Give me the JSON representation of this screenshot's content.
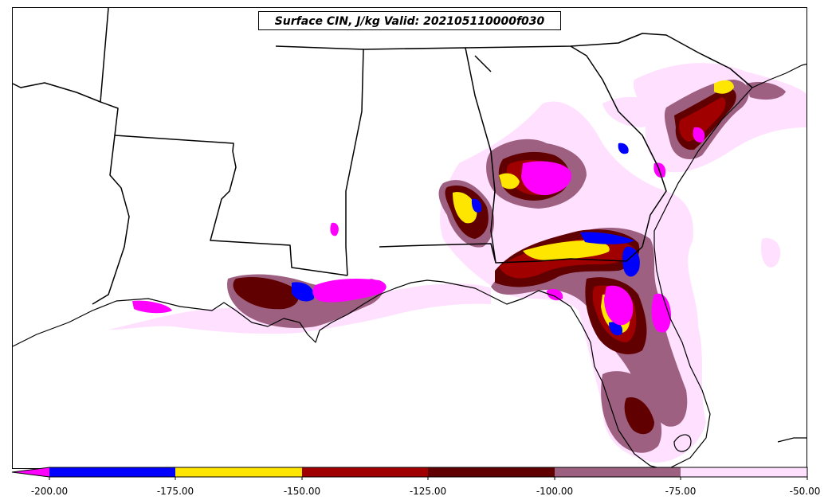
{
  "title": "Surface CIN, J/kg Valid: 202105110000f030",
  "colors": {
    "lt_neg200": "#ff00ff",
    "neg200_neg175": "#0000ff",
    "neg175_neg150": "#ffe600",
    "neg150_neg125": "#a00000",
    "neg125_neg100": "#600000",
    "neg100_neg75": "#9e6080",
    "neg75_neg50": "#ffe0ff"
  },
  "colorbar": {
    "ticks": [
      "-200.00",
      "-175.00",
      "-150.00",
      "-125.00",
      "-100.00",
      "-75.00",
      "-50.00"
    ]
  }
}
